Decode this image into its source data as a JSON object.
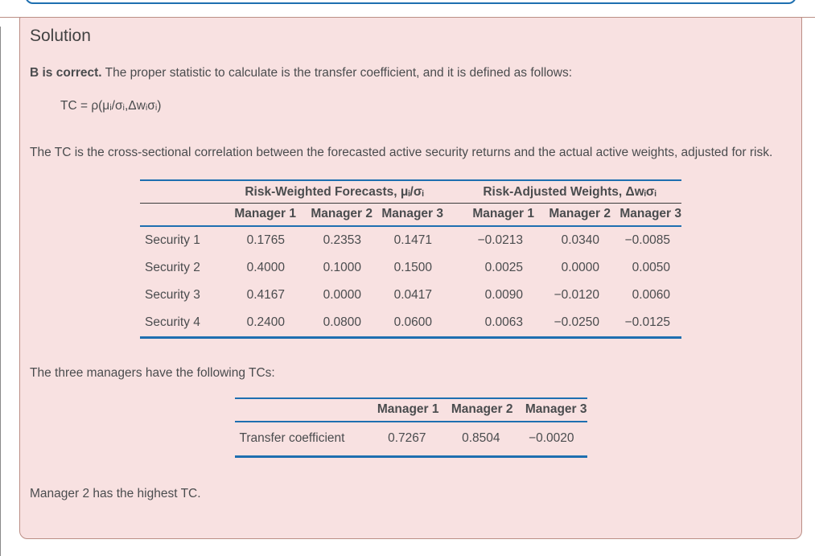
{
  "colors": {
    "panel_background": "#f8e1e1",
    "panel_border": "#bb8e85",
    "table_rule_blue": "#1e6fb0",
    "header_underline_dark": "#3b3b3b",
    "text": "#4a4c4e"
  },
  "solution": {
    "title": "Solution",
    "answer_lead": "B is correct.",
    "answer_rest": " The proper statistic to calculate is the transfer coefficient, and it is defined as follows:",
    "formula": "TC = ρ(μᵢ/σᵢ,Δwᵢσᵢ)",
    "explanation": "The TC is the cross-sectional correlation between the forecasted active security returns and the actual active weights, adjusted for risk.",
    "tcs_intro": "The three managers have the following TCs:",
    "conclusion": "Manager 2 has the highest TC."
  },
  "table1": {
    "group_headers": [
      "Risk-Weighted Forecasts, μᵢ/σᵢ",
      "Risk-Adjusted Weights, Δwᵢσᵢ"
    ],
    "col_headers": [
      "Manager 1",
      "Manager 2",
      "Manager 3",
      "Manager 1",
      "Manager 2",
      "Manager 3"
    ],
    "rows": [
      {
        "label": "Security 1",
        "values": [
          "0.1765",
          "0.2353",
          "0.1471",
          "−0.0213",
          "0.0340",
          "−0.0085"
        ]
      },
      {
        "label": "Security 2",
        "values": [
          "0.4000",
          "0.1000",
          "0.1500",
          "0.0025",
          "0.0000",
          "0.0050"
        ]
      },
      {
        "label": "Security 3",
        "values": [
          "0.4167",
          "0.0000",
          "0.0417",
          "0.0090",
          "−0.0120",
          "0.0060"
        ]
      },
      {
        "label": "Security 4",
        "values": [
          "0.2400",
          "0.0800",
          "0.0600",
          "0.0063",
          "−0.0250",
          "−0.0125"
        ]
      }
    ]
  },
  "table2": {
    "col_headers": [
      "Manager 1",
      "Manager 2",
      "Manager 3"
    ],
    "row_label": "Transfer coefficient",
    "values": [
      "0.7267",
      "0.8504",
      "−0.0020"
    ]
  }
}
